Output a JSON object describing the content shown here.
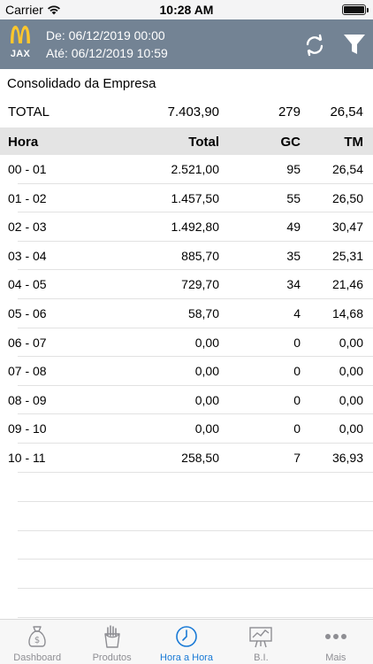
{
  "status_bar": {
    "carrier": "Carrier",
    "time": "10:28 AM"
  },
  "header": {
    "store_code": "JAX",
    "date_from": "De: 06/12/2019 00:00",
    "date_to": "Até: 06/12/2019 10:59",
    "brand_color": "#738394",
    "logo_color": "#ffc72c"
  },
  "summary": {
    "title": "Consolidado da Empresa",
    "label": "TOTAL",
    "total": "7.403,90",
    "gc": "279",
    "tm": "26,54"
  },
  "table": {
    "columns": {
      "hora": "Hora",
      "total": "Total",
      "gc": "GC",
      "tm": "TM"
    },
    "rows": [
      {
        "hora": "00 - 01",
        "total": "2.521,00",
        "gc": "95",
        "tm": "26,54"
      },
      {
        "hora": "01 - 02",
        "total": "1.457,50",
        "gc": "55",
        "tm": "26,50"
      },
      {
        "hora": "02 - 03",
        "total": "1.492,80",
        "gc": "49",
        "tm": "30,47"
      },
      {
        "hora": "03 - 04",
        "total": "885,70",
        "gc": "35",
        "tm": "25,31"
      },
      {
        "hora": "04 - 05",
        "total": "729,70",
        "gc": "34",
        "tm": "21,46"
      },
      {
        "hora": "05 - 06",
        "total": "58,70",
        "gc": "4",
        "tm": "14,68"
      },
      {
        "hora": "06 - 07",
        "total": "0,00",
        "gc": "0",
        "tm": "0,00"
      },
      {
        "hora": "07 - 08",
        "total": "0,00",
        "gc": "0",
        "tm": "0,00"
      },
      {
        "hora": "08 - 09",
        "total": "0,00",
        "gc": "0",
        "tm": "0,00"
      },
      {
        "hora": "09 - 10",
        "total": "0,00",
        "gc": "0",
        "tm": "0,00"
      },
      {
        "hora": "10 - 11",
        "total": "258,50",
        "gc": "7",
        "tm": "36,93"
      }
    ]
  },
  "tab_bar": {
    "active_color": "#1a7ad6",
    "inactive_color": "#8e8e93",
    "tabs": [
      {
        "label": "Dashboard",
        "icon": "money-bag-icon"
      },
      {
        "label": "Produtos",
        "icon": "fries-icon"
      },
      {
        "label": "Hora a Hora",
        "icon": "clock-icon"
      },
      {
        "label": "B.I.",
        "icon": "chart-board-icon"
      },
      {
        "label": "Mais",
        "icon": "more-dots-icon"
      }
    ]
  }
}
